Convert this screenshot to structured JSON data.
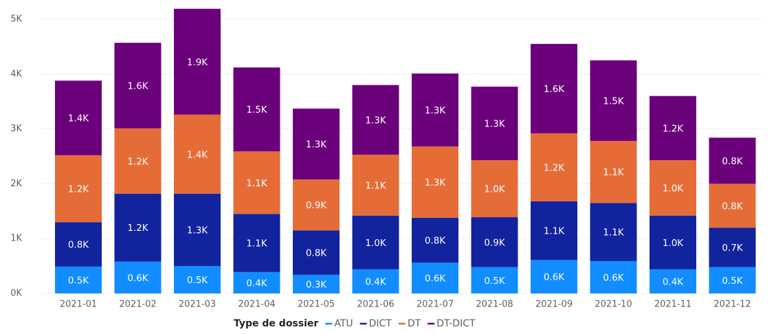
{
  "chart_data": {
    "type": "stacked_bar",
    "legend_title": "Type de dossier",
    "categories": [
      "2021-01",
      "2021-02",
      "2021-03",
      "2021-04",
      "2021-05",
      "2021-06",
      "2021-07",
      "2021-08",
      "2021-09",
      "2021-10",
      "2021-11",
      "2021-12"
    ],
    "series": [
      {
        "name": "ATU",
        "color": "#118DFF",
        "values": [
          490,
          580,
          500,
          390,
          340,
          440,
          560,
          480,
          610,
          590,
          440,
          480
        ],
        "value_labels": [
          "0.5K",
          "0.6K",
          "0.5K",
          "0.4K",
          "0.3K",
          "0.4K",
          "0.6K",
          "0.5K",
          "0.6K",
          "0.6K",
          "0.4K",
          "0.5K"
        ]
      },
      {
        "name": "DICT",
        "color": "#12239E",
        "values": [
          810,
          1240,
          1320,
          1060,
          810,
          980,
          820,
          910,
          1070,
          1060,
          980,
          720
        ],
        "value_labels": [
          "0.8K",
          "1.2K",
          "1.3K",
          "1.1K",
          "0.8K",
          "1.0K",
          "0.8K",
          "0.9K",
          "1.1K",
          "1.1K",
          "1.0K",
          "0.7K"
        ]
      },
      {
        "name": "DT",
        "color": "#E66C37",
        "values": [
          1220,
          1190,
          1440,
          1140,
          930,
          1110,
          1300,
          1040,
          1240,
          1130,
          1010,
          800
        ],
        "value_labels": [
          "1.2K",
          "1.2K",
          "1.4K",
          "1.1K",
          "0.9K",
          "1.1K",
          "1.3K",
          "1.0K",
          "1.2K",
          "1.1K",
          "1.0K",
          "0.8K"
        ]
      },
      {
        "name": "DT-DICT",
        "color": "#6B007B",
        "values": [
          1360,
          1560,
          1930,
          1530,
          1290,
          1270,
          1330,
          1340,
          1630,
          1470,
          1170,
          840
        ],
        "value_labels": [
          "1.4K",
          "1.6K",
          "1.9K",
          "1.5K",
          "1.3K",
          "1.3K",
          "1.3K",
          "1.3K",
          "1.6K",
          "1.5K",
          "1.2K",
          "0.8K"
        ]
      }
    ],
    "ylim": [
      0,
      5300
    ],
    "yticks": [
      {
        "value": 0,
        "label": "0K"
      },
      {
        "value": 1000,
        "label": "1K"
      },
      {
        "value": 2000,
        "label": "2K"
      },
      {
        "value": 3000,
        "label": "3K"
      },
      {
        "value": 4000,
        "label": "4K"
      },
      {
        "value": 5000,
        "label": "5K"
      }
    ],
    "grid": true
  }
}
